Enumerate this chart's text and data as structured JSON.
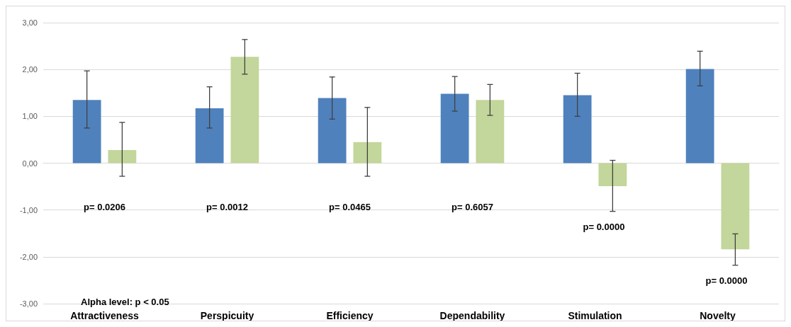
{
  "chart_data": {
    "type": "bar",
    "categories": [
      "Attractiveness",
      "Perspicuity",
      "Efficiency",
      "Dependability",
      "Stimulation",
      "Novelty"
    ],
    "series": [
      {
        "color": "#4f81bd",
        "values": [
          1.35,
          1.17,
          1.39,
          1.48,
          1.45,
          2.01
        ],
        "errors": [
          [
            0.75,
            1.97
          ],
          [
            0.75,
            1.63
          ],
          [
            0.94,
            1.84
          ],
          [
            1.11,
            1.85
          ],
          [
            1.0,
            1.92
          ],
          [
            1.65,
            2.39
          ]
        ]
      },
      {
        "color": "#c3d69b",
        "values": [
          0.28,
          2.27,
          0.45,
          1.35,
          -0.49,
          -1.84
        ],
        "errors": [
          [
            -0.28,
            0.87
          ],
          [
            1.9,
            2.64
          ],
          [
            -0.28,
            1.19
          ],
          [
            1.02,
            1.68
          ],
          [
            -1.03,
            0.06
          ],
          [
            -2.18,
            -1.51
          ]
        ]
      }
    ],
    "ylim": [
      -3,
      3
    ],
    "yticks": [
      {
        "value": -3,
        "label": "-3,00"
      },
      {
        "value": -2,
        "label": "-2,00"
      },
      {
        "value": -1,
        "label": "-1,00"
      },
      {
        "value": 0,
        "label": "0,00"
      },
      {
        "value": 1,
        "label": "1,00"
      },
      {
        "value": 2,
        "label": "2,00"
      },
      {
        "value": 3,
        "label": "3,00"
      }
    ],
    "grid": "y",
    "annotations": [
      "p= 0.0206",
      "p= 0.0012",
      "p= 0.0465",
      "p= 0.6057",
      "p= 0.0000",
      "p= 0.0000",
      "Alpha level: p < 0.05"
    ]
  }
}
